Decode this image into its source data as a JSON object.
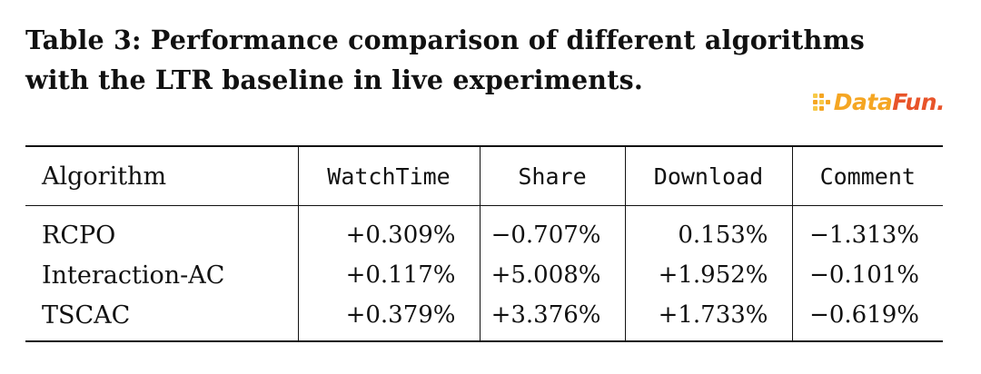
{
  "caption": {
    "line1": "Table 3: Performance comparison of different algorithms",
    "line2": "with the LTR baseline in live experiments."
  },
  "logo": {
    "text": "DataFun.",
    "colors": [
      "#f5a623",
      "#f7c948",
      "#e8542a"
    ]
  },
  "table": {
    "headers": [
      "Algorithm",
      "WatchTime",
      "Share",
      "Download",
      "Comment"
    ],
    "rows": [
      {
        "algorithm": "RCPO",
        "watchtime": "+0.309%",
        "share": "−0.707%",
        "download": "0.153%",
        "comment": "−1.313%"
      },
      {
        "algorithm": "Interaction-AC",
        "watchtime": "+0.117%",
        "share": "+5.008%",
        "download": "+1.952%",
        "comment": "−0.101%"
      },
      {
        "algorithm": "TSCAC",
        "watchtime": "+0.379%",
        "share": "+3.376%",
        "download": "+1.733%",
        "comment": "−0.619%"
      }
    ]
  },
  "chart_data": {
    "type": "table",
    "title": "Table 3: Performance comparison of different algorithms with the LTR baseline in live experiments.",
    "columns": [
      "Algorithm",
      "WatchTime",
      "Share",
      "Download",
      "Comment"
    ],
    "rows": [
      [
        "RCPO",
        "+0.309%",
        "−0.707%",
        "0.153%",
        "−1.313%"
      ],
      [
        "Interaction-AC",
        "+0.117%",
        "+5.008%",
        "+1.952%",
        "−0.101%"
      ],
      [
        "TSCAC",
        "+0.379%",
        "+3.376%",
        "+1.733%",
        "−0.619%"
      ]
    ]
  }
}
